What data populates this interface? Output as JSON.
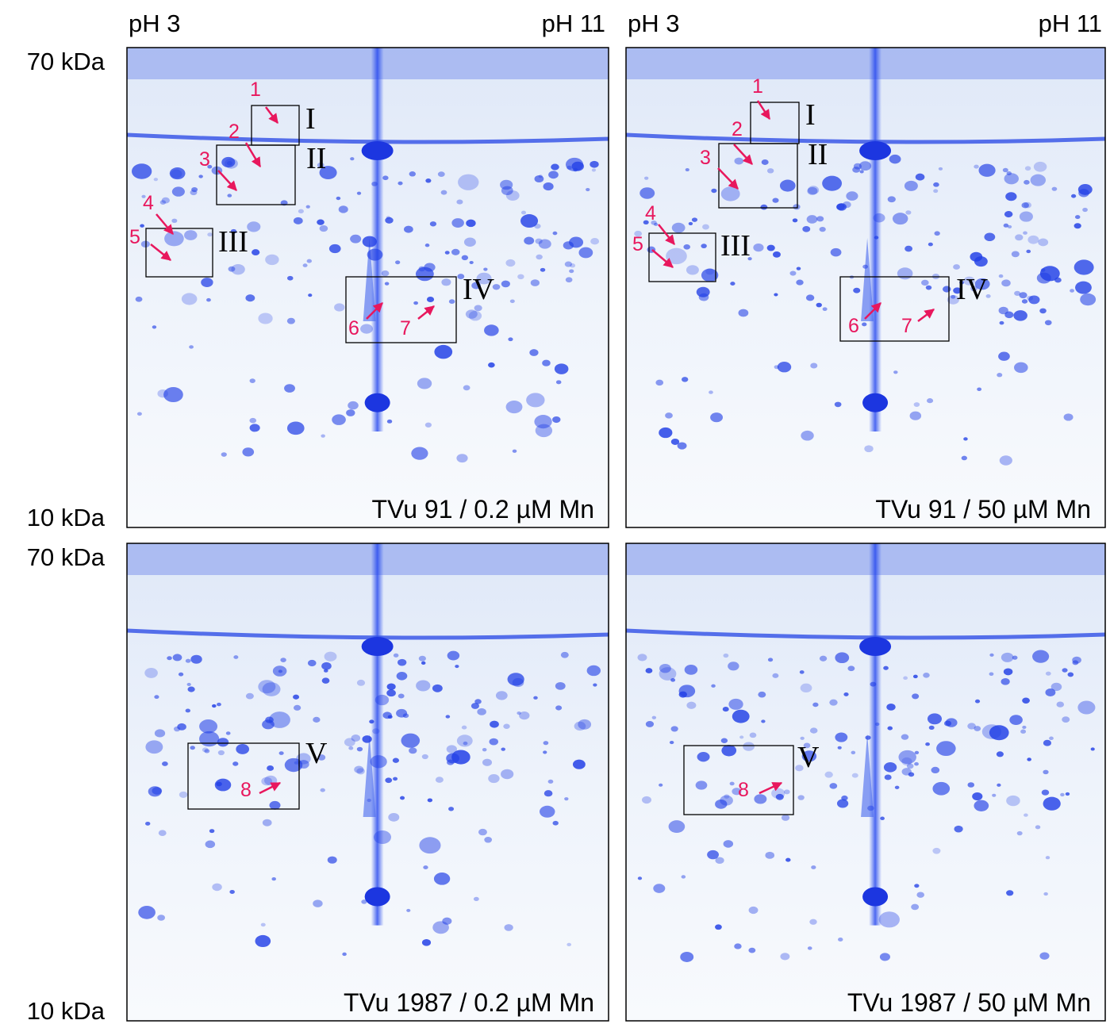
{
  "columns": [
    {
      "ph_low": "pH 3",
      "ph_high": "pH 11"
    },
    {
      "ph_low": "pH 3",
      "ph_high": "pH 11"
    }
  ],
  "rows": [
    {
      "mw_high": "70 kDa",
      "mw_low": "10 kDa"
    },
    {
      "mw_high": "70 kDa",
      "mw_low": "10 kDa"
    }
  ],
  "panels": [
    {
      "caption": "TVu 91 / 0.2 µM Mn",
      "regions": [
        "I",
        "II",
        "III",
        "IV"
      ],
      "spots": [
        "1",
        "2",
        "3",
        "4",
        "5",
        "6",
        "7"
      ]
    },
    {
      "caption": "TVu 91 / 50 µM Mn",
      "regions": [
        "I",
        "II",
        "III",
        "IV"
      ],
      "spots": [
        "1",
        "2",
        "3",
        "4",
        "5",
        "6",
        "7"
      ]
    },
    {
      "caption": "TVu 1987 / 0.2 µM Mn",
      "regions": [
        "V"
      ],
      "spots": [
        "8"
      ]
    },
    {
      "caption": "TVu 1987 / 50 µM Mn",
      "regions": [
        "V"
      ],
      "spots": [
        "8"
      ]
    }
  ]
}
